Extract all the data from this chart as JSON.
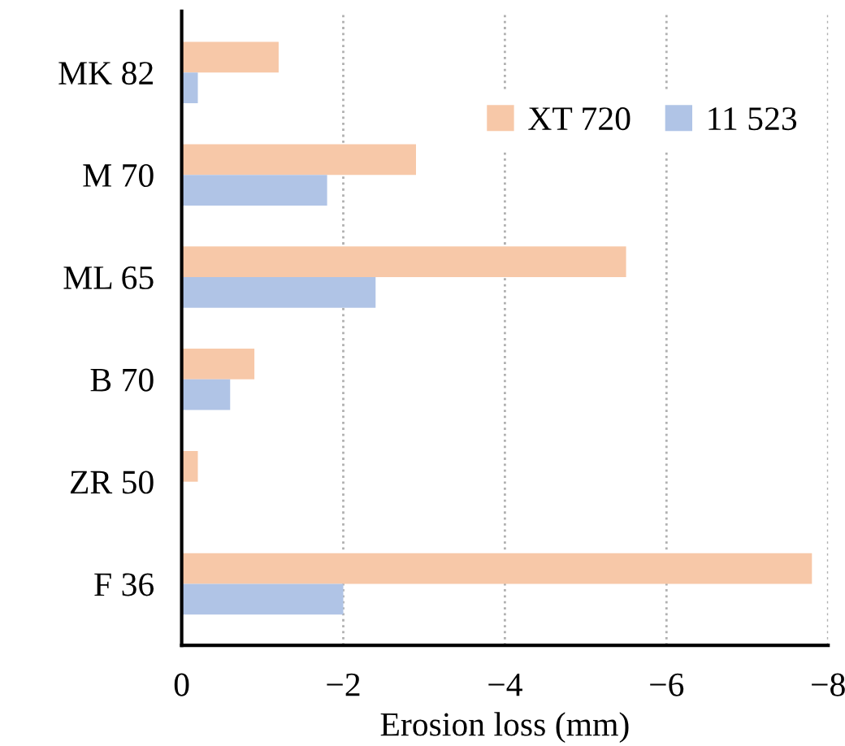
{
  "chart_data": {
    "type": "bar",
    "orientation": "horizontal",
    "xlabel": "Erosion loss (mm)",
    "categories": [
      "MK 82",
      "M 70",
      "ML 65",
      "B 70",
      "ZR 50",
      "F 36"
    ],
    "series": [
      {
        "name": "XT 720",
        "color": "#f7c8a8",
        "values": [
          -1.2,
          -2.9,
          -5.5,
          -0.9,
          -0.2,
          -7.8
        ]
      },
      {
        "name": "11 523",
        "color": "#b0c4e6",
        "values": [
          -0.2,
          -1.8,
          -2.4,
          -0.6,
          null,
          -2.0
        ]
      }
    ],
    "xlim": [
      0,
      -8
    ],
    "xticks": [
      {
        "value": 0,
        "label": "0"
      },
      {
        "value": -2,
        "label": "−2"
      },
      {
        "value": -4,
        "label": "−4"
      },
      {
        "value": -6,
        "label": "−6"
      },
      {
        "value": -8,
        "label": "−8"
      }
    ],
    "grid": "x",
    "legend": "top right"
  }
}
